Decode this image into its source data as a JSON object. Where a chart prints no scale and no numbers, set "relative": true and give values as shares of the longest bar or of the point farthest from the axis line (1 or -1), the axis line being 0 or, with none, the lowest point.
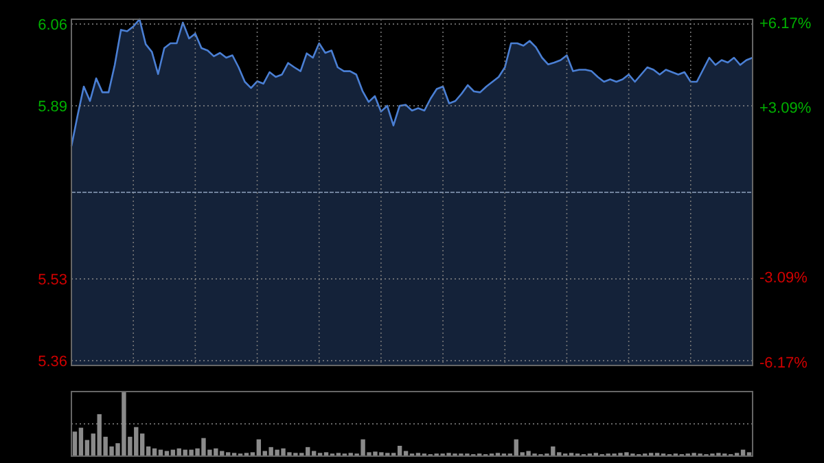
{
  "chart_data": [
    {
      "type": "area",
      "categories": [
        null,
        null,
        null,
        null,
        null,
        null,
        null,
        null,
        null,
        null,
        null,
        null,
        null,
        null,
        null,
        null,
        null,
        null,
        null,
        null,
        null,
        null,
        null,
        null,
        null,
        null,
        null,
        null,
        null,
        null,
        null,
        null,
        null,
        null,
        null,
        null,
        null,
        null,
        null,
        null,
        null,
        null,
        null,
        null,
        null,
        null,
        null,
        null,
        null,
        null,
        null,
        null,
        null,
        null,
        null,
        null,
        null,
        null,
        null,
        null,
        null,
        null,
        null,
        null,
        null,
        null,
        null,
        null,
        null,
        null,
        null,
        null,
        null,
        null,
        null,
        null,
        null,
        null,
        null,
        null,
        null,
        null,
        null,
        null,
        null,
        null,
        null,
        null,
        null,
        null,
        null,
        null,
        null,
        null,
        null,
        null,
        null,
        null,
        null,
        null,
        null,
        null,
        null,
        null,
        null,
        null,
        null,
        null,
        null,
        null,
        null
      ],
      "series": [
        {
          "color": "#4a7fd4",
          "values": [
            5.806,
            5.87,
            5.93,
            5.9,
            5.947,
            5.918,
            5.918,
            5.975,
            6.048,
            6.045,
            6.055,
            6.07,
            6.018,
            6.002,
            5.956,
            6.01,
            6.02,
            6.02,
            6.063,
            6.03,
            6.04,
            6.01,
            6.005,
            5.993,
            6.0,
            5.99,
            5.995,
            5.97,
            5.94,
            5.927,
            5.941,
            5.936,
            5.96,
            5.95,
            5.955,
            5.979,
            5.97,
            5.962,
            5.999,
            5.99,
            6.02,
            6.0,
            6.005,
            5.97,
            5.962,
            5.962,
            5.955,
            5.921,
            5.898,
            5.91,
            5.878,
            5.89,
            5.849,
            5.89,
            5.892,
            5.88,
            5.885,
            5.88,
            5.905,
            5.925,
            5.93,
            5.895,
            5.9,
            5.915,
            5.933,
            5.92,
            5.918,
            5.93,
            5.94,
            5.95,
            5.97,
            6.02,
            6.02,
            6.015,
            6.025,
            6.012,
            5.99,
            5.976,
            5.98,
            5.985,
            5.995,
            5.962,
            5.965,
            5.965,
            5.962,
            5.95,
            5.94,
            5.945,
            5.94,
            5.945,
            5.955,
            5.94,
            5.955,
            5.97,
            5.965,
            5.955,
            5.965,
            5.96,
            5.955,
            5.96,
            5.94,
            5.94,
            5.965,
            5.99,
            5.975,
            5.985,
            5.98,
            5.99,
            5.975,
            5.985,
            5.99
          ]
        }
      ],
      "ylim": [
        5.35,
        6.07
      ],
      "yticks": [
        5.36,
        5.53,
        5.89,
        6.06
      ],
      "y2lim": [
        -6.3,
        6.3
      ],
      "y2ticks": [
        {
          "value": 6.17,
          "label": "+6.17%"
        },
        {
          "value": 3.09,
          "label": "+3.09%"
        },
        {
          "value": -3.09,
          "label": "-3.09%"
        },
        {
          "value": -6.17,
          "label": "-6.17%"
        }
      ],
      "ref_lines": [
        {
          "axis": "y",
          "value": 5.71
        }
      ],
      "grid": true,
      "tick_labels": "y"
    },
    {
      "type": "bar",
      "relative": true,
      "ref_lines": [
        {
          "axis": "y",
          "value": 0.5
        }
      ],
      "categories": [
        null,
        null,
        null,
        null,
        null,
        null,
        null,
        null,
        null,
        null,
        null,
        null,
        null,
        null,
        null,
        null,
        null,
        null,
        null,
        null,
        null,
        null,
        null,
        null,
        null,
        null,
        null,
        null,
        null,
        null,
        null,
        null,
        null,
        null,
        null,
        null,
        null,
        null,
        null,
        null,
        null,
        null,
        null,
        null,
        null,
        null,
        null,
        null,
        null,
        null,
        null,
        null,
        null,
        null,
        null,
        null,
        null,
        null,
        null,
        null,
        null,
        null,
        null,
        null,
        null,
        null,
        null,
        null,
        null,
        null,
        null,
        null,
        null,
        null,
        null,
        null,
        null,
        null,
        null,
        null,
        null,
        null,
        null,
        null,
        null,
        null,
        null,
        null,
        null,
        null,
        null,
        null,
        null,
        null,
        null,
        null,
        null,
        null,
        null,
        null,
        null,
        null,
        null,
        null,
        null,
        null,
        null,
        null,
        null,
        null,
        null
      ],
      "series": [
        {
          "color": "#8a8a8a",
          "values": [
            0.38,
            0.44,
            0.25,
            0.35,
            0.65,
            0.3,
            0.15,
            0.2,
            1.0,
            0.3,
            0.45,
            0.35,
            0.15,
            0.12,
            0.1,
            0.08,
            0.1,
            0.12,
            0.1,
            0.1,
            0.12,
            0.28,
            0.1,
            0.12,
            0.08,
            0.06,
            0.05,
            0.04,
            0.05,
            0.06,
            0.26,
            0.08,
            0.14,
            0.1,
            0.12,
            0.06,
            0.05,
            0.05,
            0.14,
            0.08,
            0.05,
            0.06,
            0.04,
            0.05,
            0.04,
            0.05,
            0.04,
            0.26,
            0.06,
            0.07,
            0.06,
            0.05,
            0.05,
            0.16,
            0.08,
            0.04,
            0.05,
            0.04,
            0.03,
            0.04,
            0.04,
            0.05,
            0.04,
            0.04,
            0.04,
            0.03,
            0.04,
            0.03,
            0.04,
            0.05,
            0.04,
            0.04,
            0.26,
            0.06,
            0.08,
            0.04,
            0.03,
            0.04,
            0.15,
            0.06,
            0.04,
            0.05,
            0.04,
            0.03,
            0.04,
            0.05,
            0.03,
            0.04,
            0.04,
            0.05,
            0.06,
            0.04,
            0.03,
            0.04,
            0.05,
            0.05,
            0.04,
            0.03,
            0.04,
            0.03,
            0.04,
            0.05,
            0.04,
            0.03,
            0.04,
            0.05,
            0.04,
            0.03,
            0.05,
            0.1,
            0.06
          ]
        }
      ]
    }
  ]
}
